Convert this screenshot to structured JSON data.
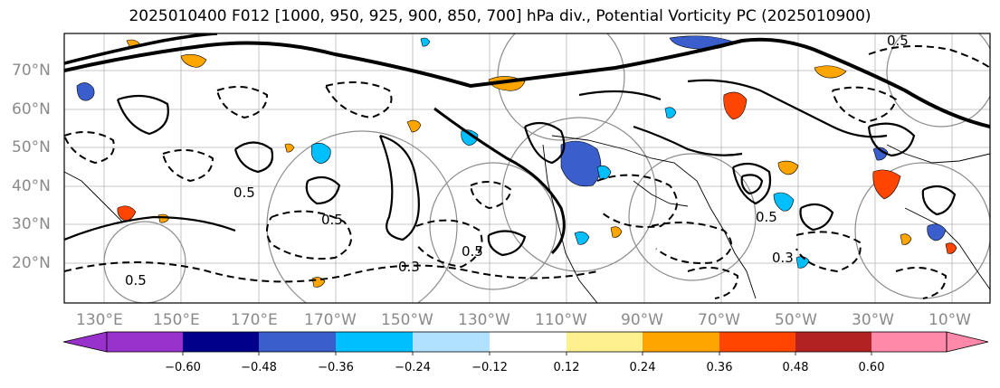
{
  "title": "2025010400 F012 [1000, 950, 925, 900, 850, 700] hPa div., Potential Vorticity PC (2025010900)",
  "lat_labels": [
    "70°N",
    "60°N",
    "50°N",
    "40°N",
    "30°N",
    "20°N"
  ],
  "lon_labels": [
    "130°E",
    "150°E",
    "170°E",
    "170°W",
    "150°W",
    "130°W",
    "110°W",
    "90°W",
    "70°W",
    "50°W",
    "30°W",
    "10°W"
  ],
  "contour_labels": [
    "0.5",
    "0.5",
    "0.3",
    "0.5",
    "0.5",
    "0.5",
    "0.3",
    "0.5"
  ],
  "colorbar": {
    "ticks": [
      "−0.60",
      "−0.48",
      "−0.36",
      "−0.24",
      "−0.12",
      "0.12",
      "0.24",
      "0.36",
      "0.48",
      "0.60"
    ],
    "colors": [
      "#9932cc",
      "#00008b",
      "#3a5fcd",
      "#00bfff",
      "#b0e2ff",
      "#ffffff",
      "#fff08f",
      "#ffa500",
      "#ff4500",
      "#b22222",
      "#ff89a8",
      "#ff89a8"
    ]
  }
}
